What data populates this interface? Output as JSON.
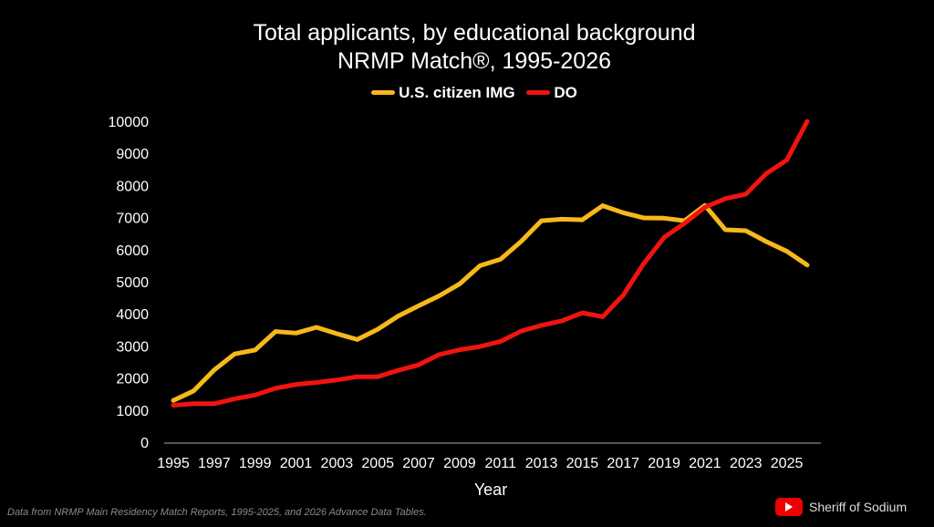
{
  "chart_data": {
    "type": "line",
    "title": "Total applicants, by educational background",
    "subtitle": "NRMP Match®, 1995-2026",
    "xlabel": "Year",
    "ylabel": "",
    "ylim": [
      0,
      10000
    ],
    "yticks": [
      0,
      1000,
      2000,
      3000,
      4000,
      5000,
      6000,
      7000,
      8000,
      9000,
      10000
    ],
    "xticks": [
      1995,
      1997,
      1999,
      2001,
      2003,
      2005,
      2007,
      2009,
      2011,
      2013,
      2015,
      2017,
      2019,
      2021,
      2023,
      2025
    ],
    "x": [
      1995,
      1996,
      1997,
      1998,
      1999,
      2000,
      2001,
      2002,
      2003,
      2004,
      2005,
      2006,
      2007,
      2008,
      2009,
      2010,
      2011,
      2012,
      2013,
      2014,
      2015,
      2016,
      2017,
      2018,
      2019,
      2020,
      2021,
      2022,
      2023,
      2024,
      2025,
      2026
    ],
    "legend_position": "top-center",
    "grid": false,
    "series": [
      {
        "name": "U.S. citizen IMG",
        "color": "#f7b81c",
        "values": [
          1300,
          1600,
          2250,
          2750,
          2870,
          3450,
          3400,
          3580,
          3380,
          3200,
          3520,
          3930,
          4250,
          4560,
          4930,
          5500,
          5700,
          6250,
          6900,
          6950,
          6930,
          7370,
          7150,
          6990,
          6980,
          6900,
          7380,
          6620,
          6590,
          6250,
          5950,
          5520
        ]
      },
      {
        "name": "DO",
        "color": "#f0140f",
        "values": [
          1150,
          1200,
          1200,
          1350,
          1470,
          1680,
          1800,
          1860,
          1940,
          2040,
          2040,
          2240,
          2410,
          2730,
          2880,
          2980,
          3140,
          3460,
          3640,
          3780,
          4030,
          3910,
          4580,
          5560,
          6380,
          6820,
          7320,
          7590,
          7730,
          8370,
          8790,
          10000
        ]
      }
    ]
  },
  "footnote": "Data from NRMP Main Residency Match Reports, 1995-2025, and 2026 Advance Data Tables.",
  "brand": "Sheriff of Sodium"
}
